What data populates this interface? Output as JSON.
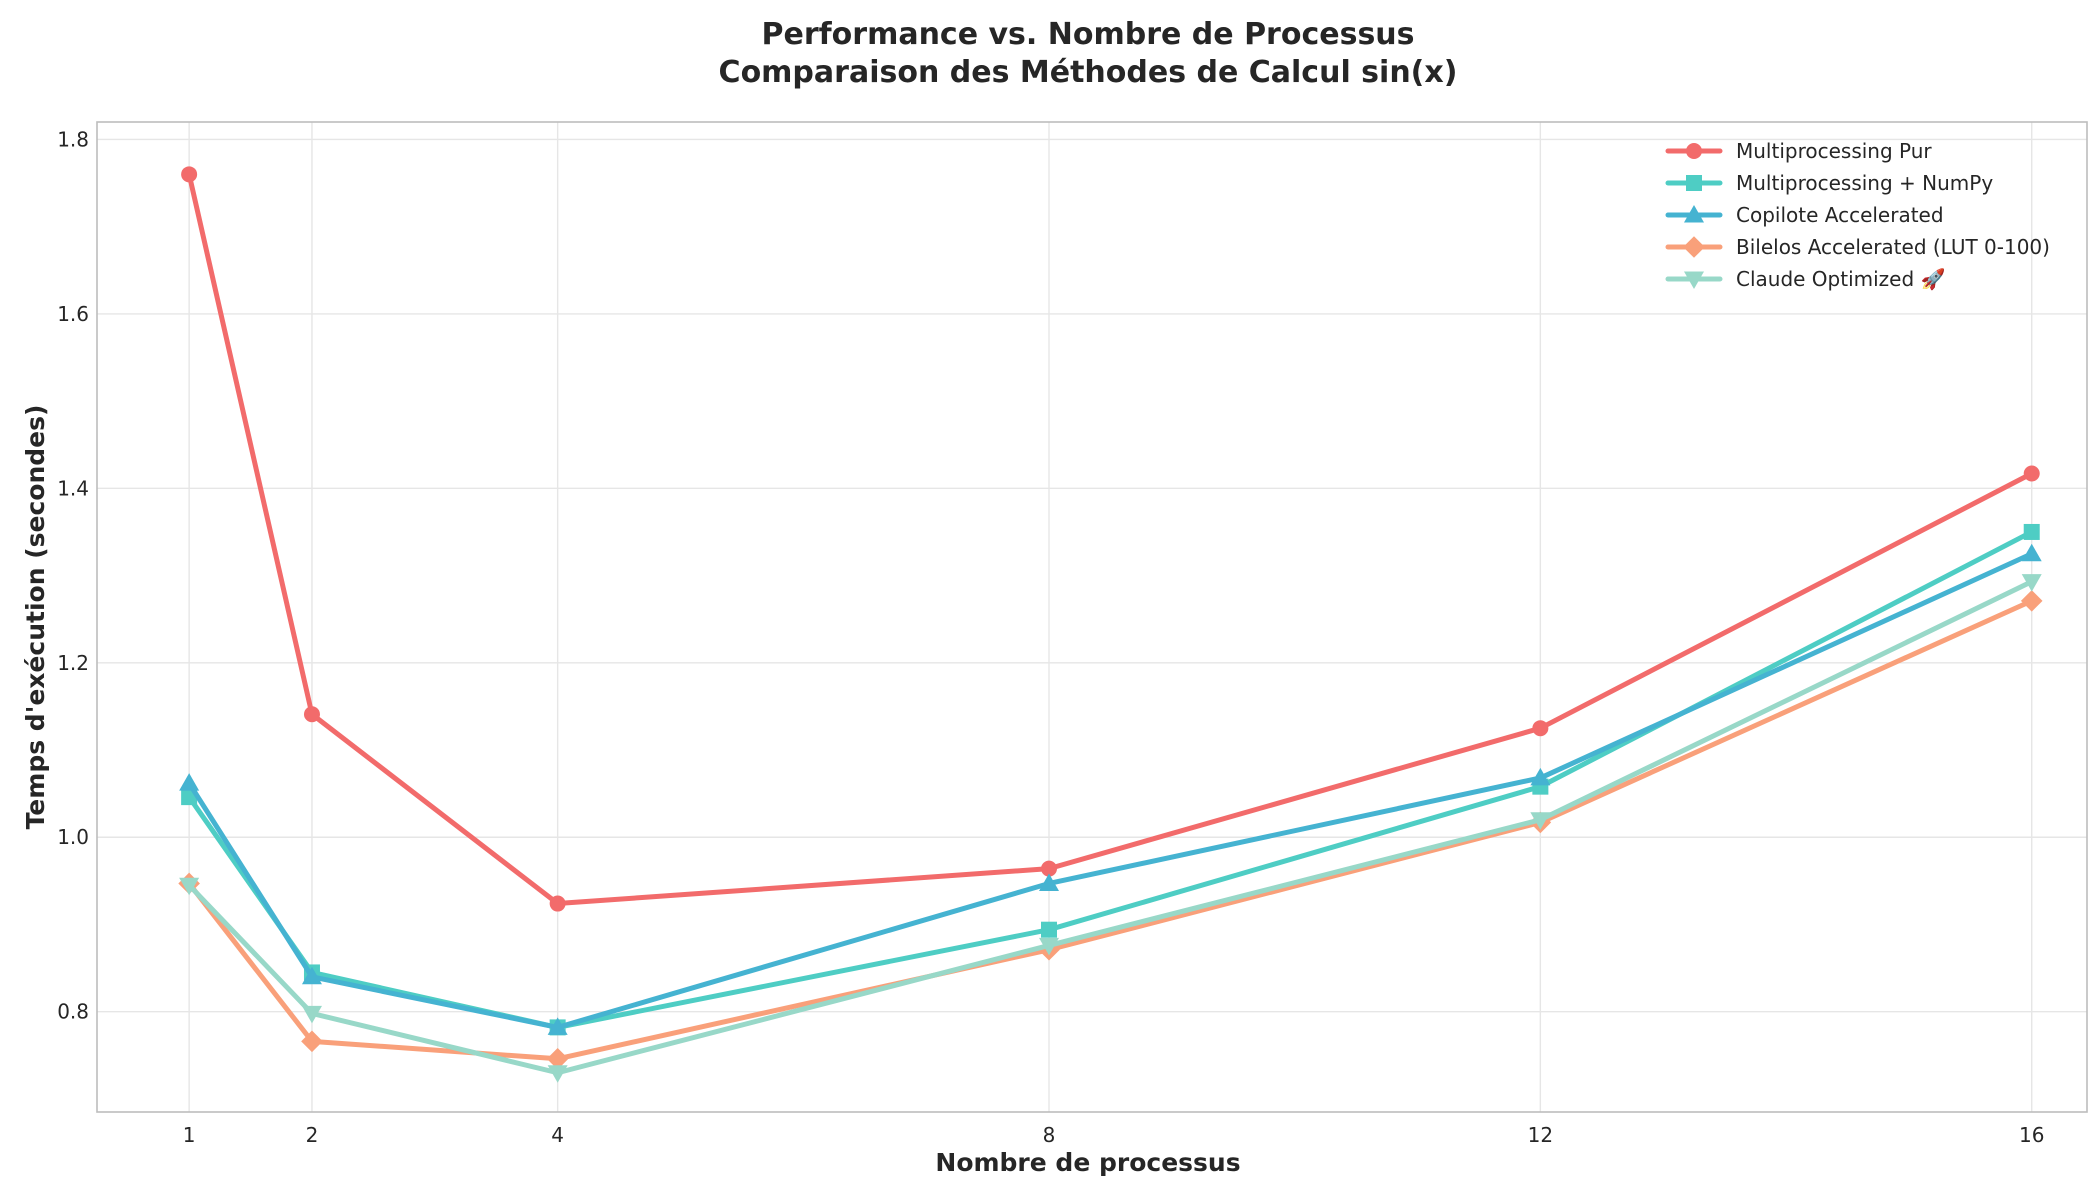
{
  "chart_data": {
    "type": "line",
    "title": "Performance vs. Nombre de Processus",
    "subtitle": "Comparaison des Méthodes de Calcul sin(x)",
    "xlabel": "Nombre de processus",
    "ylabel": "Temps d'exécution (secondes)",
    "x": [
      1,
      2,
      4,
      8,
      12,
      16
    ],
    "xticks": [
      "1",
      "2",
      "4",
      "8",
      "12",
      "16"
    ],
    "xlim": [
      0.25,
      16.45
    ],
    "ylim": [
      0.685,
      1.82
    ],
    "yticks": [
      "0.8",
      "1.0",
      "1.2",
      "1.4",
      "1.6",
      "1.8"
    ],
    "ytick_values": [
      0.8,
      1.0,
      1.2,
      1.4,
      1.6,
      1.8
    ],
    "grid": true,
    "legend_position": "top-right",
    "series": [
      {
        "name": "Multiprocessing Pur",
        "color": "#f26b6b",
        "marker": "circle",
        "values": [
          1.76,
          1.141,
          0.924,
          0.964,
          1.125,
          1.417
        ]
      },
      {
        "name": "Multiprocessing + NumPy",
        "color": "#4ecdc4",
        "marker": "square",
        "values": [
          1.046,
          0.845,
          0.782,
          0.894,
          1.058,
          1.35
        ]
      },
      {
        "name": "Copilote Accelerated",
        "color": "#45b3d1",
        "marker": "triangle-up",
        "values": [
          1.062,
          0.84,
          0.782,
          0.947,
          1.068,
          1.325
        ]
      },
      {
        "name": "Bilelos Accelerated (LUT 0-100)",
        "color": "#f9a07a",
        "marker": "diamond",
        "values": [
          0.947,
          0.766,
          0.746,
          0.871,
          1.017,
          1.271
        ]
      },
      {
        "name": "Claude Optimized 🚀",
        "color": "#98d8c8",
        "marker": "triangle-down",
        "values": [
          0.945,
          0.798,
          0.73,
          0.876,
          1.02,
          1.293
        ]
      }
    ]
  }
}
